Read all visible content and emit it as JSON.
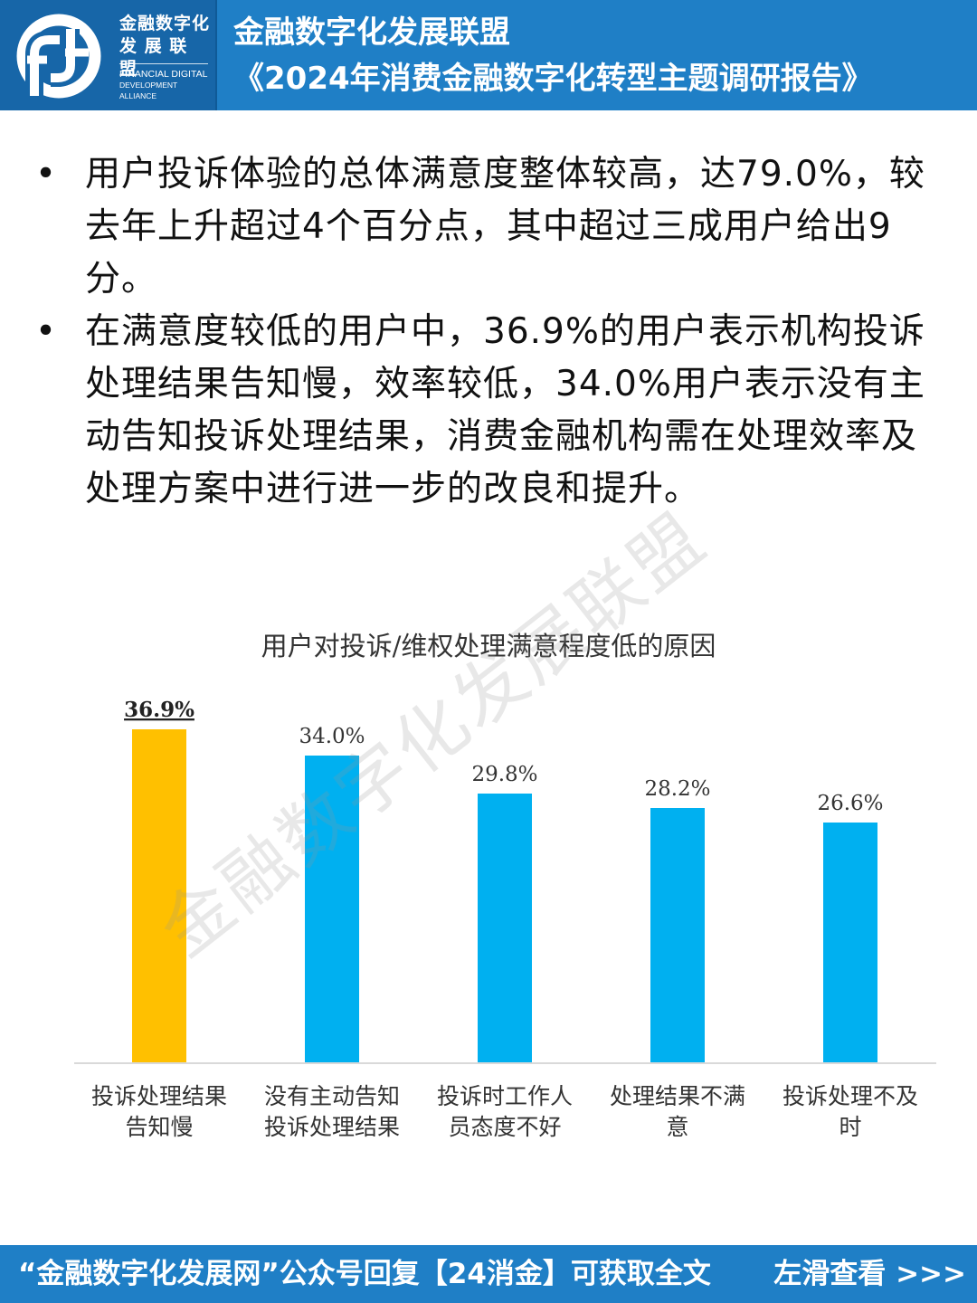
{
  "header": {
    "logo_text_cn": [
      "金融数字化",
      "发 展 联 盟"
    ],
    "logo_text_en": [
      "FINANCIAL DIGITAL",
      "DEVELOPMENT ALLIANCE"
    ],
    "title_line1": "金融数字化发展联盟",
    "title_line2": "《2024年消费金融数字化转型主题调研报告》"
  },
  "bullets": [
    {
      "marker": "•",
      "text": "用户投诉体验的总体满意度整体较高，达79.0%，较去年上升超过4个百分点，其中超过三成用户给出9分。"
    },
    {
      "marker": "•",
      "text": "在满意度较低的用户中，36.9%的用户表示机构投诉处理结果告知慢，效率较低，34.0%用户表示没有主动告知投诉处理结果，消费金融机构需在处理效率及处理方案中进行进一步的改良和提升。"
    }
  ],
  "chart_data": {
    "type": "bar",
    "title": "用户对投诉/维权处理满意程度低的原因",
    "categories": [
      [
        "投诉处理结果",
        "告知慢"
      ],
      [
        "没有主动告知",
        "投诉处理结果"
      ],
      [
        "投诉时工作人",
        "员态度不好"
      ],
      [
        "处理结果不满",
        "意"
      ],
      [
        "投诉处理不及",
        "时"
      ]
    ],
    "values": [
      36.9,
      34.0,
      29.8,
      28.2,
      26.6
    ],
    "value_labels": [
      "36.9%",
      "34.0%",
      "29.8%",
      "28.2%",
      "26.6%"
    ],
    "colors": [
      "#ffc000",
      "#00b0f0",
      "#00b0f0",
      "#00b0f0",
      "#00b0f0"
    ],
    "highlight_index": 0,
    "ylim": [
      0,
      40
    ],
    "grid": false,
    "xlabel": "",
    "ylabel": ""
  },
  "watermark": "金融数字化发展联盟",
  "footer": {
    "text": "“金融数字化发展网”公众号回复【24消金】可获取全文",
    "swipe": "左滑查看 >>>"
  },
  "colors": {
    "brand_blue": "#1f7fc6",
    "logo_bg": "#1766a8"
  }
}
